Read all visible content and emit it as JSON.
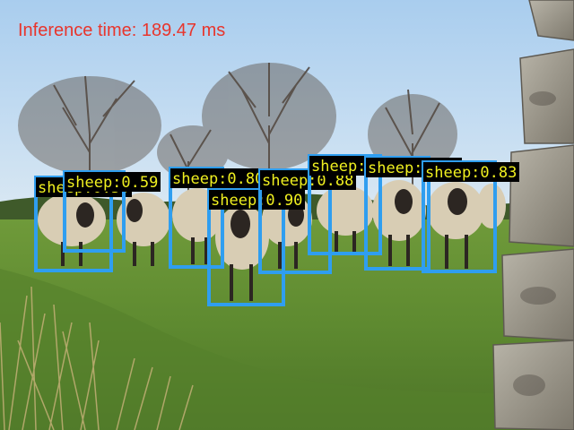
{
  "inference": {
    "label": "Inference time: 189.47 ms",
    "color": "#e8352c"
  },
  "box_color": "#2f9ef0",
  "label_color": "#f0f020",
  "detections": [
    {
      "label": "sheep:0.59"
    },
    {
      "label": "sheep:0.59"
    },
    {
      "label": "sheep:0.80"
    },
    {
      "label": "sheep:0.90"
    },
    {
      "label": "sheep:0.88"
    },
    {
      "label": "sheep:0.82"
    },
    {
      "label": "sheep:0.82"
    },
    {
      "label": "sheep:0.83"
    }
  ]
}
